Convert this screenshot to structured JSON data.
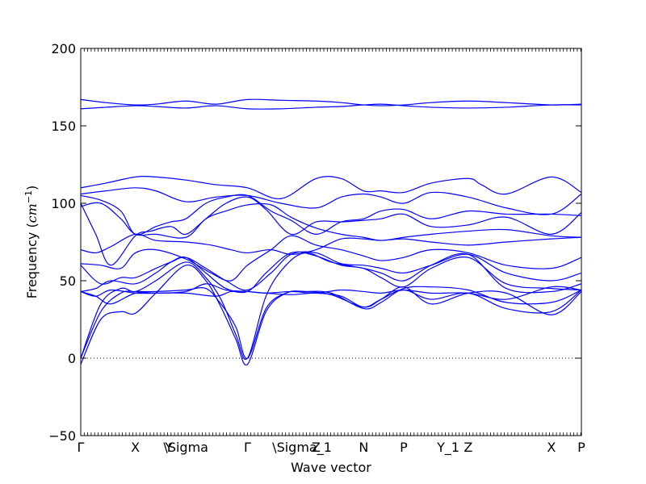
{
  "chart_data": {
    "type": "line",
    "xlabel": "Wave vector",
    "ylabel_prefix": "Frequency (",
    "ylabel_math": "cm",
    "ylabel_sup": "−1",
    "ylabel_suffix": ")",
    "ylim": [
      -50,
      200
    ],
    "yticks": [
      -50,
      0,
      50,
      100,
      150,
      200
    ],
    "xlim": [
      0,
      1
    ],
    "grid": false,
    "line_color": "#0000ff",
    "zero_line": true,
    "xticks": [
      {
        "label": "Γ",
        "pos": 0.0
      },
      {
        "label": "X",
        "pos": 0.109
      },
      {
        "label": "Y",
        "pos": 0.176
      },
      {
        "label": "\\Sigma",
        "pos": 0.21
      },
      {
        "label": "Γ",
        "pos": 0.333
      },
      {
        "label": "\\Sigma_1",
        "pos": 0.442
      },
      {
        "label": "Z",
        "pos": 0.47
      },
      {
        "label": "N",
        "pos": 0.565
      },
      {
        "label": "P",
        "pos": 0.645
      },
      {
        "label": "Y_1",
        "pos": 0.734
      },
      {
        "label": "Z",
        "pos": 0.774
      },
      {
        "label": "X",
        "pos": 0.94
      },
      {
        "label": "P",
        "pos": 1.0
      }
    ],
    "series": [
      {
        "x": [
          0,
          0.05,
          0.109,
          0.15,
          0.21,
          0.27,
          0.333,
          0.4,
          0.47,
          0.52,
          0.565,
          0.6,
          0.645,
          0.7,
          0.774,
          0.85,
          0.94,
          1.0
        ],
        "y": [
          167,
          165,
          163.5,
          164,
          166,
          164,
          167,
          166.5,
          166,
          165,
          163.5,
          163,
          163.5,
          165,
          166,
          165,
          163.5,
          164
        ]
      },
      {
        "x": [
          0,
          0.05,
          0.109,
          0.15,
          0.21,
          0.27,
          0.333,
          0.4,
          0.47,
          0.52,
          0.565,
          0.6,
          0.645,
          0.7,
          0.774,
          0.85,
          0.94,
          1.0
        ],
        "y": [
          161,
          162,
          163,
          162.5,
          161.5,
          163,
          161,
          161,
          162,
          162.5,
          163.5,
          164,
          163,
          162,
          161.5,
          162,
          163.5,
          163.5
        ]
      },
      {
        "x": [
          0,
          0.05,
          0.109,
          0.15,
          0.21,
          0.27,
          0.333,
          0.4,
          0.47,
          0.52,
          0.565,
          0.6,
          0.645,
          0.7,
          0.774,
          0.8,
          0.85,
          0.94,
          1.0
        ],
        "y": [
          110,
          113,
          117,
          117,
          115,
          112,
          110,
          103,
          116,
          116,
          108,
          108,
          107,
          113,
          116,
          112,
          106,
          117,
          107
        ]
      },
      {
        "x": [
          0,
          0.05,
          0.109,
          0.15,
          0.21,
          0.27,
          0.333,
          0.4,
          0.47,
          0.52,
          0.565,
          0.6,
          0.645,
          0.7,
          0.774,
          0.85,
          0.94,
          1.0
        ],
        "y": [
          106,
          108,
          110,
          108,
          101,
          104,
          105,
          100,
          97,
          104,
          106,
          104,
          100,
          107,
          104,
          97,
          93,
          106
        ]
      },
      {
        "x": [
          0,
          0.04,
          0.08,
          0.109,
          0.15,
          0.18,
          0.21,
          0.25,
          0.29,
          0.333,
          0.38,
          0.42,
          0.47,
          0.52,
          0.565,
          0.6,
          0.645,
          0.7,
          0.774,
          0.85,
          0.94,
          1.0
        ],
        "y": [
          105,
          102,
          95,
          80,
          85,
          88,
          90,
          100,
          104,
          105,
          95,
          89,
          80,
          88,
          90,
          95,
          96,
          90,
          95,
          93,
          93,
          92
        ]
      },
      {
        "x": [
          0,
          0.03,
          0.06,
          0.109,
          0.14,
          0.18,
          0.21,
          0.25,
          0.29,
          0.333,
          0.37,
          0.42,
          0.47,
          0.52,
          0.565,
          0.6,
          0.645,
          0.7,
          0.774,
          0.85,
          0.94,
          1.0
        ],
        "y": [
          100,
          80,
          60,
          79,
          82,
          85,
          80,
          90,
          100,
          104,
          96,
          80,
          88,
          88,
          89,
          90,
          93,
          85,
          86,
          91,
          80,
          94
        ]
      },
      {
        "x": [
          0,
          0.04,
          0.08,
          0.109,
          0.15,
          0.21,
          0.25,
          0.29,
          0.333,
          0.38,
          0.42,
          0.47,
          0.52,
          0.565,
          0.6,
          0.645,
          0.7,
          0.774,
          0.85,
          0.94,
          1.0
        ],
        "y": [
          98,
          100,
          90,
          80,
          80,
          78,
          90,
          95,
          99,
          99,
          91,
          84,
          80,
          78,
          76,
          78,
          80,
          82,
          83,
          79,
          78
        ]
      },
      {
        "x": [
          0,
          0.03,
          0.06,
          0.109,
          0.15,
          0.21,
          0.26,
          0.3,
          0.333,
          0.38,
          0.42,
          0.47,
          0.52,
          0.565,
          0.6,
          0.645,
          0.7,
          0.774,
          0.85,
          0.94,
          1.0
        ],
        "y": [
          70,
          68,
          72,
          80,
          76,
          75,
          73,
          70,
          68,
          70,
          67,
          70,
          77,
          77,
          76,
          77,
          75,
          73,
          75,
          77,
          78
        ]
      },
      {
        "x": [
          0,
          0.04,
          0.08,
          0.109,
          0.15,
          0.21,
          0.26,
          0.3,
          0.333,
          0.38,
          0.42,
          0.47,
          0.52,
          0.565,
          0.6,
          0.645,
          0.7,
          0.774,
          0.85,
          0.94,
          1.0
        ],
        "y": [
          61,
          60,
          58,
          68,
          70,
          64,
          55,
          50,
          60,
          70,
          79,
          73,
          70,
          66,
          63,
          65,
          70,
          68,
          60,
          58,
          65
        ]
      },
      {
        "x": [
          0,
          0.04,
          0.08,
          0.109,
          0.15,
          0.18,
          0.21,
          0.25,
          0.29,
          0.333,
          0.38,
          0.42,
          0.47,
          0.52,
          0.565,
          0.6,
          0.645,
          0.7,
          0.774,
          0.85,
          0.94,
          1.0
        ],
        "y": [
          60,
          48,
          52,
          52,
          58,
          62,
          65,
          58,
          50,
          44,
          55,
          67,
          68,
          61,
          60,
          58,
          55,
          60,
          67,
          55,
          50,
          55
        ]
      },
      {
        "x": [
          0,
          0.03,
          0.06,
          0.109,
          0.15,
          0.18,
          0.21,
          0.25,
          0.29,
          0.333,
          0.37,
          0.42,
          0.47,
          0.52,
          0.565,
          0.6,
          0.645,
          0.7,
          0.774,
          0.85,
          0.94,
          1.0
        ],
        "y": [
          43,
          45,
          50,
          48,
          55,
          62,
          65,
          55,
          45,
          43,
          55,
          68,
          66,
          60,
          58,
          52,
          46,
          58,
          65,
          48,
          45,
          44
        ]
      },
      {
        "x": [
          0,
          0.03,
          0.06,
          0.109,
          0.15,
          0.21,
          0.25,
          0.29,
          0.333,
          0.37,
          0.42,
          0.47,
          0.52,
          0.565,
          0.6,
          0.645,
          0.7,
          0.774,
          0.85,
          0.94,
          1.0
        ],
        "y": [
          43,
          40,
          44,
          42,
          42,
          43,
          48,
          44,
          43,
          42,
          43,
          42,
          44,
          43,
          42,
          44,
          42,
          42,
          38,
          46,
          44
        ]
      },
      {
        "x": [
          0,
          0.03,
          0.06,
          0.109,
          0.15,
          0.21,
          0.27,
          0.3,
          0.333,
          0.37,
          0.42,
          0.47,
          0.52,
          0.565,
          0.6,
          0.645,
          0.7,
          0.774,
          0.85,
          0.94,
          1.0
        ],
        "y": [
          43,
          40,
          35,
          42,
          42,
          42,
          40,
          43,
          43,
          42,
          41,
          42,
          40,
          33,
          38,
          44,
          38,
          42,
          32,
          30,
          44
        ]
      },
      {
        "x": [
          0,
          0.04,
          0.08,
          0.109,
          0.15,
          0.21,
          0.25,
          0.28,
          0.31,
          0.333,
          0.37,
          0.41,
          0.45,
          0.5,
          0.565,
          0.6,
          0.645,
          0.7,
          0.774,
          0.85,
          0.94,
          1.0
        ],
        "y": [
          0,
          30,
          42,
          43,
          43,
          44,
          45,
          35,
          20,
          0,
          32,
          42,
          43,
          42,
          32,
          36,
          45,
          46,
          44,
          36,
          36,
          44
        ]
      },
      {
        "x": [
          0,
          0.04,
          0.08,
          0.109,
          0.15,
          0.21,
          0.25,
          0.28,
          0.31,
          0.333,
          0.37,
          0.41,
          0.45,
          0.5,
          0.565,
          0.6,
          0.645,
          0.7,
          0.774,
          0.85,
          0.94,
          1.0
        ],
        "y": [
          -4,
          25,
          30,
          29,
          42,
          60,
          50,
          33,
          12,
          -4,
          30,
          42,
          43,
          41,
          33,
          38,
          46,
          35,
          42,
          42,
          28,
          43
        ]
      },
      {
        "x": [
          0,
          0.04,
          0.08,
          0.109,
          0.15,
          0.21,
          0.25,
          0.28,
          0.31,
          0.333,
          0.37,
          0.41,
          0.45,
          0.5,
          0.565,
          0.6,
          0.645,
          0.7,
          0.774,
          0.85,
          0.94,
          1.0
        ],
        "y": [
          0,
          35,
          45,
          43,
          50,
          62,
          52,
          38,
          15,
          0,
          40,
          60,
          68,
          62,
          58,
          55,
          50,
          60,
          67,
          45,
          43,
          48
        ]
      }
    ]
  }
}
